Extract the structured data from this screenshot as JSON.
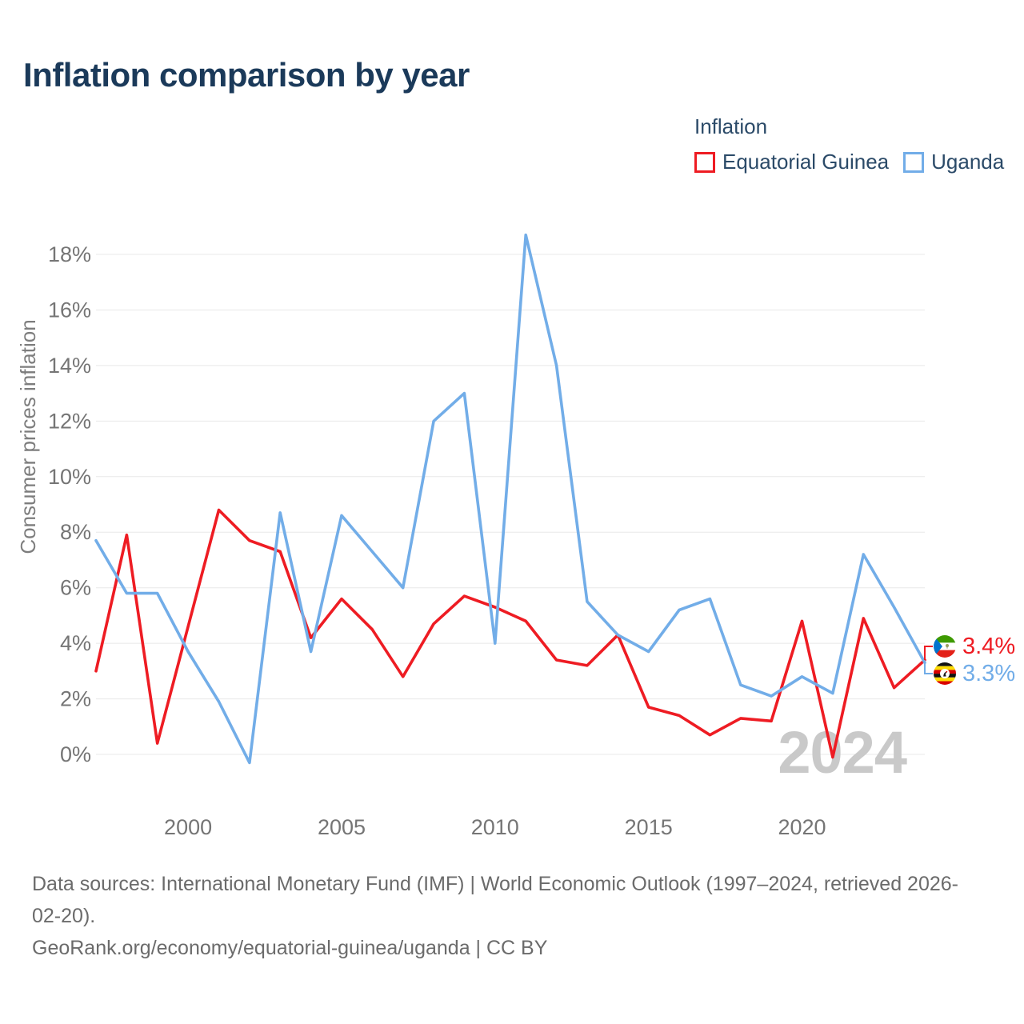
{
  "title": "Inflation comparison by year",
  "legend": {
    "title": "Inflation",
    "items": [
      {
        "label": "Equatorial Guinea",
        "color": "#EE1C23"
      },
      {
        "label": "Uganda",
        "color": "#72ADE8"
      }
    ]
  },
  "chart_data": {
    "type": "line",
    "title": "Inflation comparison by year",
    "xlabel": "",
    "ylabel": "Consumer prices inflation",
    "legend_title": "Inflation",
    "legend_position": "top-right",
    "grid": "horizontal",
    "ylim": [
      -0.5,
      19
    ],
    "watermark": "2024",
    "x": [
      1997,
      1998,
      1999,
      2000,
      2001,
      2002,
      2003,
      2004,
      2005,
      2006,
      2007,
      2008,
      2009,
      2010,
      2011,
      2012,
      2013,
      2014,
      2015,
      2016,
      2017,
      2018,
      2019,
      2020,
      2021,
      2022,
      2023,
      2024
    ],
    "xtick_values": [
      2000,
      2005,
      2010,
      2015,
      2020
    ],
    "xtick_labels": [
      "2000",
      "2005",
      "2010",
      "2015",
      "2020"
    ],
    "ytick_values": [
      0,
      2,
      4,
      6,
      8,
      10,
      12,
      14,
      16,
      18
    ],
    "ytick_labels": [
      "0%",
      "2%",
      "4%",
      "6%",
      "8%",
      "10%",
      "12%",
      "14%",
      "16%",
      "18%"
    ],
    "series": [
      {
        "name": "Equatorial Guinea",
        "slug": "equatorial-guinea",
        "color": "#EE1C23",
        "end_label": "3.4%",
        "values": [
          3.0,
          7.9,
          0.4,
          4.6,
          8.8,
          7.7,
          7.3,
          4.2,
          5.6,
          4.5,
          2.8,
          4.7,
          5.7,
          5.3,
          4.8,
          3.4,
          3.2,
          4.3,
          1.7,
          1.4,
          0.7,
          1.3,
          1.2,
          4.8,
          -0.1,
          4.9,
          2.4,
          3.4
        ]
      },
      {
        "name": "Uganda",
        "slug": "uganda",
        "color": "#72ADE8",
        "end_label": "3.3%",
        "values": [
          7.7,
          5.8,
          5.8,
          3.7,
          1.9,
          -0.3,
          8.7,
          3.7,
          8.6,
          7.3,
          6.0,
          12.0,
          13.0,
          4.0,
          18.7,
          14.0,
          5.5,
          4.3,
          3.7,
          5.2,
          5.6,
          2.5,
          2.1,
          2.8,
          2.2,
          7.2,
          5.3,
          3.3
        ]
      }
    ]
  },
  "end_labels": [
    {
      "value": "3.4%",
      "color": "#EE1C23",
      "flag": "equatorial-guinea-flag"
    },
    {
      "value": "3.3%",
      "color": "#72ADE8",
      "flag": "uganda-flag"
    }
  ],
  "footer": {
    "lines": [
      "Data sources: International Monetary Fund (IMF) | World Economic Outlook (1997–2024, retrieved 2026-",
      "02-20).",
      "GeoRank.org/economy/equatorial-guinea/uganda | CC BY"
    ]
  },
  "ui_colors": {
    "background": "#FFFFFF",
    "title": "#1B3A5A",
    "legend_text": "#2B4A68",
    "tick": "#757575",
    "grid": "#E8E8E8",
    "watermark": "#C9C9C9",
    "footer": "#6B6B6B"
  }
}
